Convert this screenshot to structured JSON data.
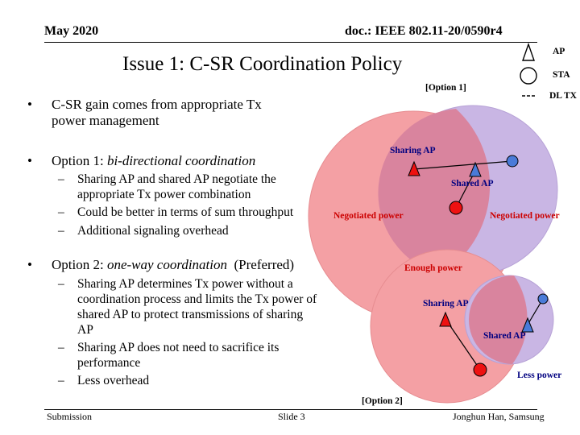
{
  "header": {
    "date": "May 2020",
    "doc_id": "doc.: IEEE 802.11-20/0590r4"
  },
  "slide": {
    "title": "Issue 1: C-SR Coordination Policy",
    "bullets": [
      {
        "bullet": "•",
        "line1": "C-SR gain comes from appropriate Tx",
        "line2": "power management"
      },
      {
        "bullet": "•",
        "prefix": "Option 1: ",
        "emph": "bi-directional coordination",
        "subs": [
          {
            "dash": "–",
            "lines": [
              "Sharing AP and shared AP negotiate the",
              "appropriate Tx power combination"
            ]
          },
          {
            "dash": "–",
            "lines": [
              "Could be better in terms of sum throughput"
            ]
          },
          {
            "dash": "–",
            "lines": [
              "Additional signaling overhead"
            ]
          }
        ]
      },
      {
        "bullet": "•",
        "prefix": "Option 2: ",
        "emph": "one-way coordination",
        "suffix": "  (Preferred)",
        "subs": [
          {
            "dash": "–",
            "lines": [
              "Sharing AP determines Tx power without a",
              "coordination process and limits the Tx power of",
              "shared AP to protect transmissions of sharing",
              "AP"
            ]
          },
          {
            "dash": "–",
            "lines": [
              "Sharing AP does not need to sacrifice its",
              "performance"
            ]
          },
          {
            "dash": "–",
            "lines": [
              "Less overhead"
            ]
          }
        ]
      }
    ]
  },
  "legend": {
    "ap": "AP",
    "sta": "STA",
    "dl_tx": "DL TX"
  },
  "diagram1": {
    "option_label": "[Option 1]",
    "sharing_ap": "Sharing AP",
    "shared_ap": "Shared AP",
    "negotiated_left": "Negotiated power",
    "negotiated_right": "Negotiated power"
  },
  "diagram2": {
    "enough_power": "Enough power",
    "sharing_ap": "Sharing AP",
    "shared_ap": "Shared AP",
    "less_power": "Less power",
    "option_label": "[Option 2]"
  },
  "footer": {
    "submission": "Submission",
    "slide": "Slide 3",
    "author": "Jonghun Han, Samsung"
  },
  "colors": {
    "sharing_bss": "#f4a0a4",
    "shared_bss": "#c9b6e4",
    "overlap": "#d9849e",
    "sta": "#ee1111",
    "label_red": "#cc0000",
    "label_blue": "#000080"
  }
}
